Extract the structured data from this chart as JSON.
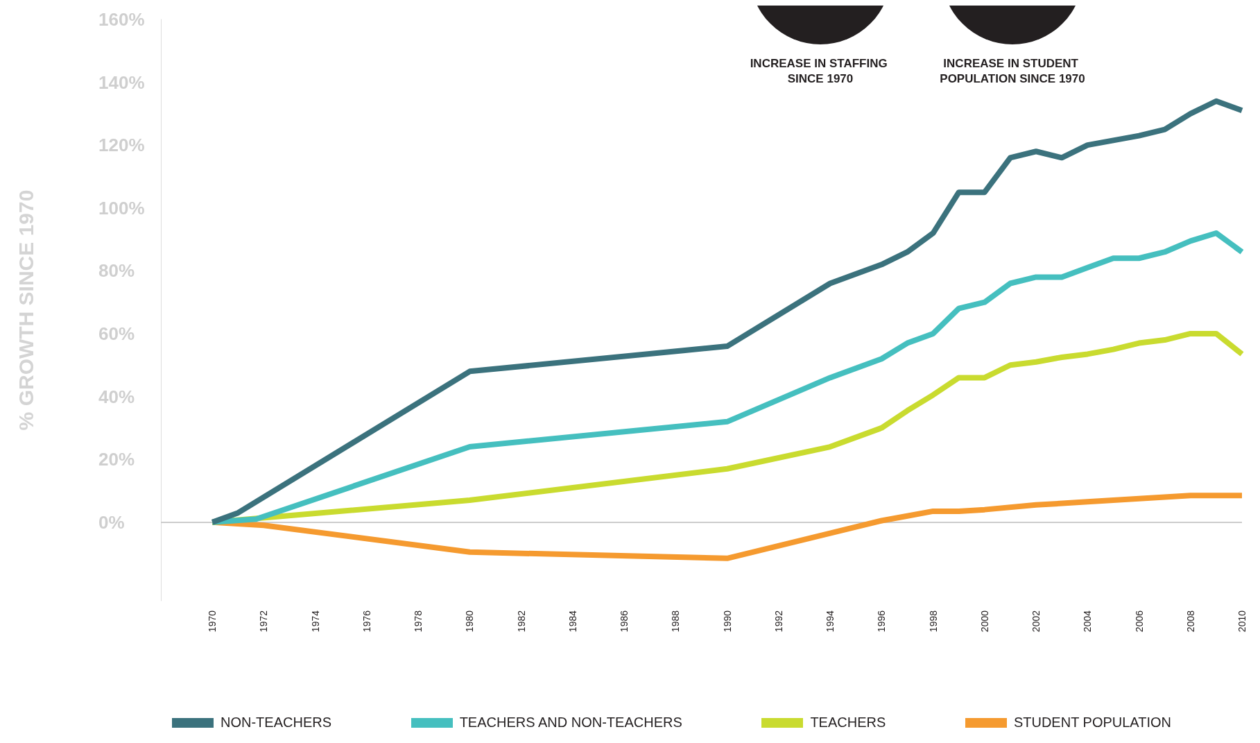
{
  "chart_data": {
    "type": "line",
    "ylabel": "% GROWTH SINCE 1970",
    "annotations": [
      "INCREASE IN STAFFING SINCE 1970",
      "INCREASE IN STUDENT POPULATION SINCE 1970"
    ],
    "xlim": [
      1968,
      2010
    ],
    "xticks": [
      1970,
      1972,
      1974,
      1976,
      1978,
      1980,
      1982,
      1984,
      1986,
      1988,
      1990,
      1992,
      1994,
      1996,
      1998,
      2000,
      2002,
      2004,
      2006,
      2008,
      2010
    ],
    "ylim": [
      -25,
      160
    ],
    "yticks": [
      {
        "value": 0,
        "label": "0%"
      },
      {
        "value": 20,
        "label": "20%"
      },
      {
        "value": 40,
        "label": "40%"
      },
      {
        "value": 60,
        "label": "60%"
      },
      {
        "value": 80,
        "label": "80%"
      },
      {
        "value": 100,
        "label": "100%"
      },
      {
        "value": 120,
        "label": "120%"
      },
      {
        "value": 140,
        "label": "140%"
      },
      {
        "value": 160,
        "label": "160%"
      }
    ],
    "grid": false,
    "legend": "bottom",
    "marker": "none",
    "line_style": "solid",
    "ref_lines": [
      {
        "axis": "y",
        "value": 0,
        "color": "#cccccc"
      }
    ],
    "series": [
      {
        "name": "NON-TEACHERS",
        "color": "#3b727d",
        "x": [
          1970,
          1971,
          1980,
          1990,
          1994,
          1996,
          1997,
          1998,
          1999,
          2000,
          2001,
          2002,
          2003,
          2004,
          2005,
          2006,
          2007,
          2008,
          2009,
          2010
        ],
        "values": [
          0,
          3,
          48,
          56,
          76,
          82,
          86,
          92,
          105,
          105,
          116,
          118,
          116,
          120,
          121.5,
          123,
          125,
          130,
          134,
          131
        ]
      },
      {
        "name": "TEACHERS AND NON-TEACHERS",
        "color": "#45bfbf",
        "x": [
          1970,
          1971.7,
          1980,
          1990,
          1994,
          1996,
          1997,
          1998,
          1999,
          2000,
          2001,
          2002,
          2003,
          2004,
          2005,
          2006,
          2007,
          2008,
          2009,
          2010
        ],
        "values": [
          0,
          1,
          24,
          32,
          46,
          52,
          57,
          60,
          68,
          70,
          76,
          78,
          78,
          81,
          84,
          84,
          86,
          89.5,
          92,
          86
        ]
      },
      {
        "name": "TEACHERS",
        "color": "#c9db2f",
        "x": [
          1970,
          1980,
          1990,
          1994,
          1996,
          1997,
          1998,
          1999,
          2000,
          2001,
          2002,
          2003,
          2004,
          2005,
          2006,
          2007,
          2008,
          2009,
          2010
        ],
        "values": [
          0,
          7,
          17,
          24,
          30,
          35.5,
          40.5,
          46,
          46,
          50,
          51,
          52.5,
          53.5,
          55,
          57,
          58,
          60,
          60,
          53.5
        ]
      },
      {
        "name": "STUDENT POPULATION",
        "color": "#f59a2f",
        "x": [
          1970,
          1972,
          1980,
          1990,
          1994,
          1996,
          1997,
          1998,
          1999,
          2000,
          2002,
          2004,
          2006,
          2008,
          2010
        ],
        "values": [
          0,
          -1,
          -9.5,
          -11.5,
          -3.5,
          0.5,
          2,
          3.5,
          3.5,
          4,
          5.5,
          6.5,
          7.5,
          8.5,
          8.5
        ]
      }
    ]
  }
}
